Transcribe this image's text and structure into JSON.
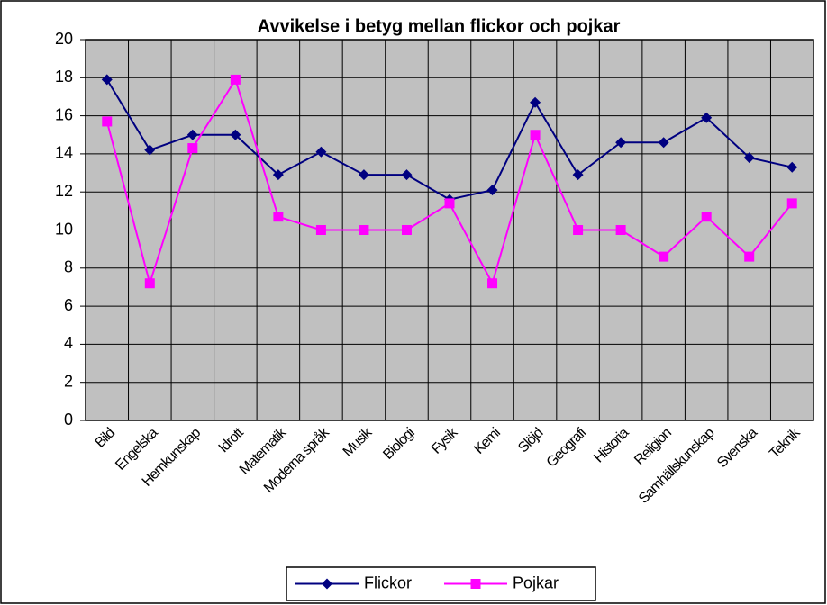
{
  "chart_data": {
    "type": "line",
    "title": "Avvikelse i betyg mellan flickor och pojkar",
    "categories": [
      "Bild",
      "Engelska",
      "Hemkunskap",
      "Idrott",
      "Matematik",
      "Moderna språk",
      "Musik",
      "Biologi",
      "Fysik",
      "Kemi",
      "Slöjd",
      "Geografi",
      "Historia",
      "Religion",
      "Samhällskunskap",
      "Svenska",
      "Teknik"
    ],
    "series": [
      {
        "name": "Flickor",
        "color": "#000080",
        "marker": "diamond",
        "values": [
          17.9,
          14.2,
          15.0,
          15.0,
          12.9,
          14.1,
          12.9,
          12.9,
          11.6,
          12.1,
          16.7,
          12.9,
          14.6,
          14.6,
          15.9,
          13.8,
          13.3
        ]
      },
      {
        "name": "Pojkar",
        "color": "#ff00ff",
        "marker": "square",
        "values": [
          15.7,
          7.2,
          14.3,
          17.9,
          10.7,
          10.0,
          10.0,
          10.0,
          11.4,
          7.2,
          15.0,
          10.0,
          10.0,
          8.6,
          10.7,
          8.6,
          11.4
        ]
      }
    ],
    "ylim": [
      0,
      20
    ],
    "yticks": [
      0,
      2,
      4,
      6,
      8,
      10,
      12,
      14,
      16,
      18,
      20
    ],
    "grid": true,
    "legend": "bottom",
    "plot_background": "#c0c0c0"
  }
}
